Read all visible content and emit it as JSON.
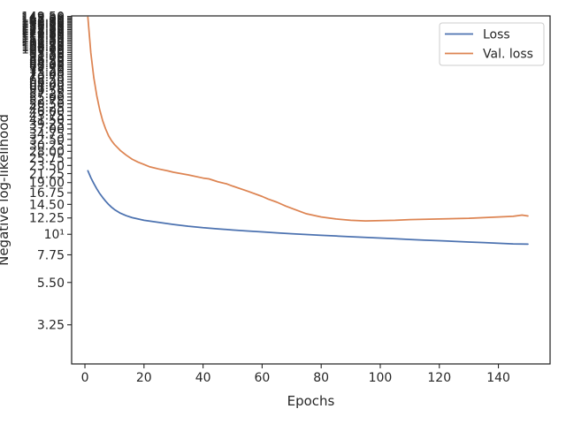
{
  "chart_data": {
    "type": "line",
    "title": "",
    "xlabel": "Epochs",
    "ylabel": "Negative log-likelihood",
    "yscale": "log",
    "xlim": [
      -4.5,
      157.5
    ],
    "ylim": [
      2.0,
      150.5
    ],
    "grid": false,
    "legend_position": "top-right",
    "xticks": [
      0,
      20,
      40,
      60,
      80,
      100,
      120,
      140
    ],
    "xtick_labels": [
      "0",
      "20",
      "40",
      "60",
      "80",
      "100",
      "120",
      "140"
    ],
    "yticks": [
      {
        "value": 3.25,
        "label": "3.25"
      },
      {
        "value": 5.5,
        "label": "5.50"
      },
      {
        "value": 7.75,
        "label": "7.75"
      },
      {
        "value": 10,
        "label": "10¹"
      },
      {
        "value": 12.25,
        "label": "12.25"
      },
      {
        "value": 14.5,
        "label": "14.50"
      },
      {
        "value": 16.75,
        "label": "16.75"
      },
      {
        "value": 19.0,
        "label": "19.00"
      },
      {
        "value": 21.25,
        "label": "21.25"
      },
      {
        "value": 23.5,
        "label": "23.50"
      },
      {
        "value": 25.75,
        "label": "25.75"
      },
      {
        "value": 28.0,
        "label": "28.00"
      },
      {
        "value": 30.25,
        "label": "30.25"
      },
      {
        "value": 32.5,
        "label": "32.50"
      },
      {
        "value": 34.75,
        "label": "34.75"
      },
      {
        "value": 37.0,
        "label": "37.00"
      },
      {
        "value": 39.25,
        "label": "39.25"
      },
      {
        "value": 41.5,
        "label": "41.50"
      },
      {
        "value": 43.75,
        "label": "43.75"
      },
      {
        "value": 46.0,
        "label": "46.00"
      },
      {
        "value": 48.25,
        "label": "48.25"
      },
      {
        "value": 50.5,
        "label": "50.50"
      },
      {
        "value": 52.75,
        "label": "52.75"
      },
      {
        "value": 55.0,
        "label": "55.00"
      },
      {
        "value": 57.25,
        "label": "57.25"
      },
      {
        "value": 59.5,
        "label": "59.50"
      },
      {
        "value": 61.75,
        "label": "61.75"
      },
      {
        "value": 64.0,
        "label": "64.00"
      },
      {
        "value": 66.25,
        "label": "66.25"
      },
      {
        "value": 68.5,
        "label": "68.50"
      },
      {
        "value": 70.75,
        "label": "70.75"
      },
      {
        "value": 73.0,
        "label": "73.00"
      },
      {
        "value": 75.25,
        "label": "75.25"
      },
      {
        "value": 77.5,
        "label": "77.50"
      },
      {
        "value": 79.75,
        "label": "79.75"
      },
      {
        "value": 82.0,
        "label": "82.00"
      },
      {
        "value": 84.25,
        "label": "84.25"
      },
      {
        "value": 86.5,
        "label": "86.50"
      },
      {
        "value": 88.75,
        "label": "88.75"
      },
      {
        "value": 91.0,
        "label": "91.00"
      },
      {
        "value": 93.25,
        "label": "93.25"
      },
      {
        "value": 95.5,
        "label": "95.50"
      },
      {
        "value": 97.75,
        "label": "97.75"
      },
      {
        "value": 100.0,
        "label": "100.00"
      },
      {
        "value": 102.25,
        "label": "102.25"
      },
      {
        "value": 104.5,
        "label": "104.50"
      },
      {
        "value": 106.75,
        "label": "106.75"
      },
      {
        "value": 109.0,
        "label": "109.00"
      },
      {
        "value": 111.25,
        "label": "111.25"
      },
      {
        "value": 113.5,
        "label": "113.50"
      },
      {
        "value": 115.75,
        "label": "115.75"
      },
      {
        "value": 118.0,
        "label": "118.00"
      },
      {
        "value": 120.25,
        "label": "120.25"
      },
      {
        "value": 122.5,
        "label": "122.50"
      },
      {
        "value": 124.75,
        "label": "124.75"
      },
      {
        "value": 127.0,
        "label": "127.00"
      },
      {
        "value": 129.25,
        "label": "129.25"
      },
      {
        "value": 131.5,
        "label": "131.50"
      },
      {
        "value": 133.75,
        "label": "133.75"
      },
      {
        "value": 136.0,
        "label": "136.00"
      },
      {
        "value": 138.25,
        "label": "138.25"
      },
      {
        "value": 140.5,
        "label": "140.50"
      },
      {
        "value": 142.75,
        "label": "142.75"
      },
      {
        "value": 145.0,
        "label": "145.00"
      },
      {
        "value": 147.25,
        "label": "147.25"
      },
      {
        "value": 149.5,
        "label": "149.50"
      }
    ],
    "series": [
      {
        "name": "Loss",
        "color": "#4c72b0",
        "x": [
          1,
          2,
          3,
          4,
          5,
          6,
          7,
          8,
          9,
          10,
          12,
          14,
          16,
          18,
          20,
          25,
          30,
          35,
          40,
          45,
          50,
          55,
          60,
          65,
          70,
          75,
          80,
          85,
          90,
          95,
          100,
          105,
          110,
          115,
          120,
          125,
          130,
          135,
          140,
          145,
          150
        ],
        "y": [
          22.0,
          20.2,
          18.8,
          17.6,
          16.6,
          15.8,
          15.1,
          14.5,
          14.0,
          13.6,
          13.0,
          12.6,
          12.3,
          12.1,
          11.9,
          11.6,
          11.3,
          11.05,
          10.85,
          10.7,
          10.55,
          10.42,
          10.3,
          10.18,
          10.07,
          9.97,
          9.88,
          9.79,
          9.7,
          9.62,
          9.54,
          9.46,
          9.38,
          9.3,
          9.23,
          9.16,
          9.09,
          9.02,
          8.95,
          8.88,
          8.85
        ]
      },
      {
        "name": "Val. loss",
        "color": "#dd8452",
        "x": [
          1,
          2,
          3,
          4,
          5,
          6,
          7,
          8,
          9,
          10,
          12,
          14,
          16,
          18,
          20,
          22,
          25,
          28,
          30,
          35,
          40,
          42,
          45,
          48,
          50,
          55,
          60,
          62,
          65,
          68,
          70,
          75,
          80,
          85,
          90,
          95,
          100,
          105,
          110,
          115,
          120,
          125,
          130,
          135,
          140,
          145,
          148,
          150
        ],
        "y": [
          148.0,
          95.0,
          70.0,
          56.0,
          47.0,
          41.0,
          37.0,
          34.0,
          32.0,
          30.5,
          28.3,
          26.7,
          25.4,
          24.5,
          23.8,
          23.1,
          22.5,
          22.0,
          21.6,
          20.9,
          20.1,
          19.9,
          19.2,
          18.7,
          18.2,
          17.1,
          16.0,
          15.5,
          14.9,
          14.2,
          13.8,
          12.9,
          12.4,
          12.1,
          11.9,
          11.8,
          11.85,
          11.9,
          12.0,
          12.05,
          12.1,
          12.15,
          12.2,
          12.3,
          12.4,
          12.5,
          12.7,
          12.55
        ]
      }
    ]
  }
}
